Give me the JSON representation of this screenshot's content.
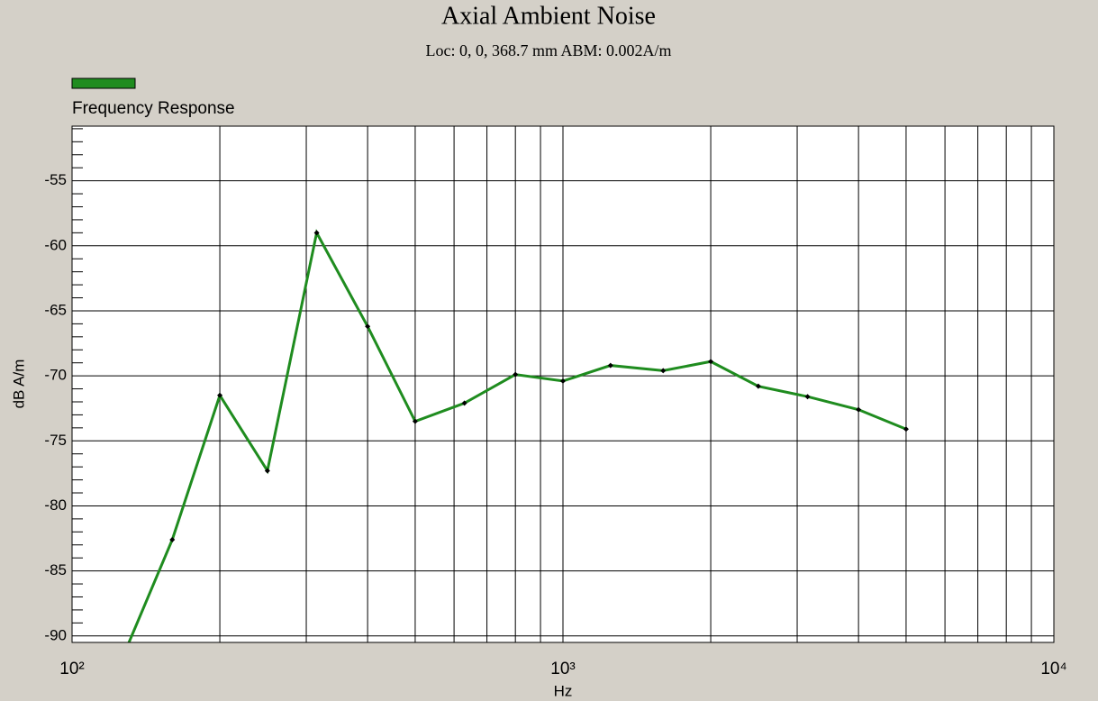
{
  "chart_data": {
    "type": "line",
    "title": "Axial Ambient Noise",
    "subtitle": "Loc: 0, 0, 368.7 mm ABM: 0.002A/m",
    "x_label": "Hz",
    "y_label": "dB A/m",
    "x_log": true,
    "grid": true,
    "x": [
      125,
      160,
      200,
      250,
      315,
      400,
      500,
      630,
      800,
      1000,
      1250,
      1600,
      2000,
      2500,
      3150,
      4000,
      5000
    ],
    "series": [
      {
        "name": "Frequency Response",
        "color": "#1f8c1f",
        "values": [
          -92.2,
          -82.6,
          -71.5,
          -77.3,
          -59.0,
          -66.2,
          -73.5,
          -72.1,
          -69.9,
          -70.4,
          -69.2,
          -69.6,
          -68.9,
          -70.8,
          -71.6,
          -72.6,
          -74.1
        ]
      }
    ],
    "xlim": [
      100,
      10000
    ],
    "xticks": [
      {
        "value": 100,
        "label": "10²"
      },
      {
        "value": 1000,
        "label": "10³"
      },
      {
        "value": 10000,
        "label": "10⁴"
      }
    ],
    "x_minor_grid": [
      200,
      300,
      400,
      500,
      600,
      700,
      800,
      900,
      2000,
      3000,
      4000,
      5000,
      6000,
      7000,
      8000,
      9000
    ],
    "ylim": [
      -90.5,
      -50.8
    ],
    "yticks": [
      -55,
      -60,
      -65,
      -70,
      -75,
      -80,
      -85,
      -90
    ],
    "y_minor_ticks": [
      -51,
      -52,
      -53,
      -54,
      -56,
      -57,
      -58,
      -59,
      -61,
      -62,
      -63,
      -64,
      -66,
      -67,
      -68,
      -69,
      -71,
      -72,
      -73,
      -74,
      -76,
      -77,
      -78,
      -79,
      -81,
      -82,
      -83,
      -84,
      -86,
      -87,
      -88,
      -89
    ]
  }
}
